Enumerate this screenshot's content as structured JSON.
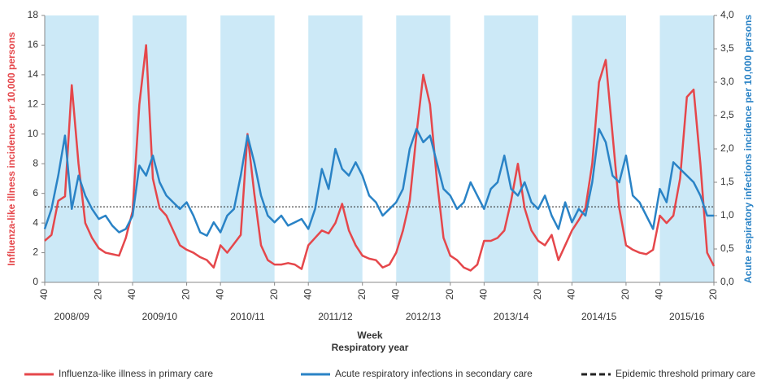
{
  "chart_data": {
    "type": "line",
    "x_title": "Week",
    "x_subtitle": "Respiratory year",
    "y_title": "Influenza-like illness incidence per 10,000 persons",
    "y2_title": "Acute respiratory infections incidence per 10,000 persons",
    "xlim": [
      0,
      396
    ],
    "xticks": [
      {
        "value": 0,
        "label": "40"
      },
      {
        "value": 32,
        "label": "20"
      },
      {
        "value": 52,
        "label": "40"
      },
      {
        "value": 84,
        "label": "20"
      },
      {
        "value": 104,
        "label": "40"
      },
      {
        "value": 136,
        "label": "20"
      },
      {
        "value": 156,
        "label": "40"
      },
      {
        "value": 188,
        "label": "20"
      },
      {
        "value": 208,
        "label": "40"
      },
      {
        "value": 240,
        "label": "20"
      },
      {
        "value": 260,
        "label": "40"
      },
      {
        "value": 292,
        "label": "20"
      },
      {
        "value": 312,
        "label": "40"
      },
      {
        "value": 344,
        "label": "20"
      },
      {
        "value": 364,
        "label": "40"
      },
      {
        "value": 396,
        "label": "20"
      }
    ],
    "seasons": [
      "2008/09",
      "2009/10",
      "2010/11",
      "2011/12",
      "2012/13",
      "2013/14",
      "2014/15",
      "2015/16"
    ],
    "ylim": [
      0,
      18
    ],
    "yticks": [
      0,
      2,
      4,
      6,
      8,
      10,
      12,
      14,
      16,
      18
    ],
    "y2lim": [
      0,
      4
    ],
    "y2ticks": [
      {
        "value": 0,
        "label": "0,0"
      },
      {
        "value": 0.5,
        "label": "0,5"
      },
      {
        "value": 1,
        "label": "1,0"
      },
      {
        "value": 1.5,
        "label": "1,5"
      },
      {
        "value": 2,
        "label": "2,0"
      },
      {
        "value": 2.5,
        "label": "2,5"
      },
      {
        "value": 3,
        "label": "3,0"
      },
      {
        "value": 3.5,
        "label": "3,5"
      },
      {
        "value": 4,
        "label": "4,0"
      }
    ],
    "x": [
      0,
      4,
      8,
      12,
      16,
      20,
      24,
      28,
      32,
      36,
      40,
      44,
      48,
      52,
      56,
      60,
      64,
      68,
      72,
      76,
      80,
      84,
      88,
      92,
      96,
      100,
      104,
      108,
      112,
      116,
      120,
      124,
      128,
      132,
      136,
      140,
      144,
      148,
      152,
      156,
      160,
      164,
      168,
      172,
      176,
      180,
      184,
      188,
      192,
      196,
      200,
      204,
      208,
      212,
      216,
      220,
      224,
      228,
      232,
      236,
      240,
      244,
      248,
      252,
      256,
      260,
      264,
      268,
      272,
      276,
      280,
      284,
      288,
      292,
      296,
      300,
      304,
      308,
      312,
      316,
      320,
      324,
      328,
      332,
      336,
      340,
      344,
      348,
      352,
      356,
      360,
      364,
      368,
      372,
      376,
      380,
      384,
      388,
      392,
      396
    ],
    "series": [
      {
        "name": "Influenza-like illness in primary care",
        "color": "#e5474b",
        "values": [
          2.8,
          3.2,
          5.5,
          5.8,
          13.3,
          8,
          4,
          3,
          2.3,
          2.0,
          1.9,
          1.8,
          3.0,
          4.8,
          12,
          16,
          7,
          5,
          4.5,
          3.5,
          2.5,
          2.2,
          2,
          1.7,
          1.5,
          1.0,
          2.5,
          2.0,
          2.6,
          3.2,
          10,
          6,
          2.5,
          1.5,
          1.2,
          1.2,
          1.3,
          1.2,
          0.9,
          2.5,
          3,
          3.5,
          3.3,
          4,
          5.3,
          3.5,
          2.5,
          1.8,
          1.6,
          1.5,
          1,
          1.2,
          2,
          3.5,
          5.5,
          10,
          14,
          12,
          7,
          3,
          1.8,
          1.5,
          1,
          0.8,
          1.2,
          2.8,
          2.8,
          3,
          3.5,
          5.5,
          8,
          5,
          3.5,
          2.8,
          2.5,
          3.2,
          1.5,
          2.5,
          3.5,
          4.2,
          5,
          8,
          13.5,
          15,
          10,
          5,
          2.5,
          2.2,
          2,
          1.9,
          2.2,
          4.5,
          4,
          4.5,
          7,
          12.5,
          13,
          8,
          2,
          1.1
        ]
      },
      {
        "name": "Acute respiratory infections in secondary care",
        "color": "#2a83c6",
        "axis": "y2",
        "values": [
          0.8,
          1.1,
          1.6,
          2.2,
          1.1,
          1.6,
          1.3,
          1.1,
          0.95,
          1.0,
          0.85,
          0.75,
          0.8,
          1.0,
          1.75,
          1.6,
          1.9,
          1.5,
          1.3,
          1.2,
          1.1,
          1.2,
          1.0,
          0.75,
          0.7,
          0.9,
          0.75,
          1.0,
          1.1,
          1.6,
          2.2,
          1.8,
          1.3,
          1.0,
          0.9,
          1.0,
          0.85,
          0.9,
          0.95,
          0.8,
          1.1,
          1.7,
          1.4,
          2.0,
          1.7,
          1.6,
          1.8,
          1.6,
          1.3,
          1.2,
          1.0,
          1.1,
          1.2,
          1.4,
          2.0,
          2.3,
          2.1,
          2.2,
          1.8,
          1.4,
          1.3,
          1.1,
          1.2,
          1.5,
          1.3,
          1.1,
          1.4,
          1.5,
          1.9,
          1.4,
          1.3,
          1.5,
          1.2,
          1.1,
          1.3,
          1.0,
          0.8,
          1.2,
          0.9,
          1.1,
          1.0,
          1.5,
          2.3,
          2.1,
          1.6,
          1.5,
          1.9,
          1.3,
          1.2,
          1.0,
          0.8,
          1.4,
          1.2,
          1.8,
          1.7,
          1.6,
          1.5,
          1.3,
          1.0,
          1.0
        ]
      }
    ],
    "threshold": {
      "name": "Epidemic threshold primary care",
      "color": "#222222",
      "value": 5.1
    },
    "band_color": "#cce9f7"
  }
}
